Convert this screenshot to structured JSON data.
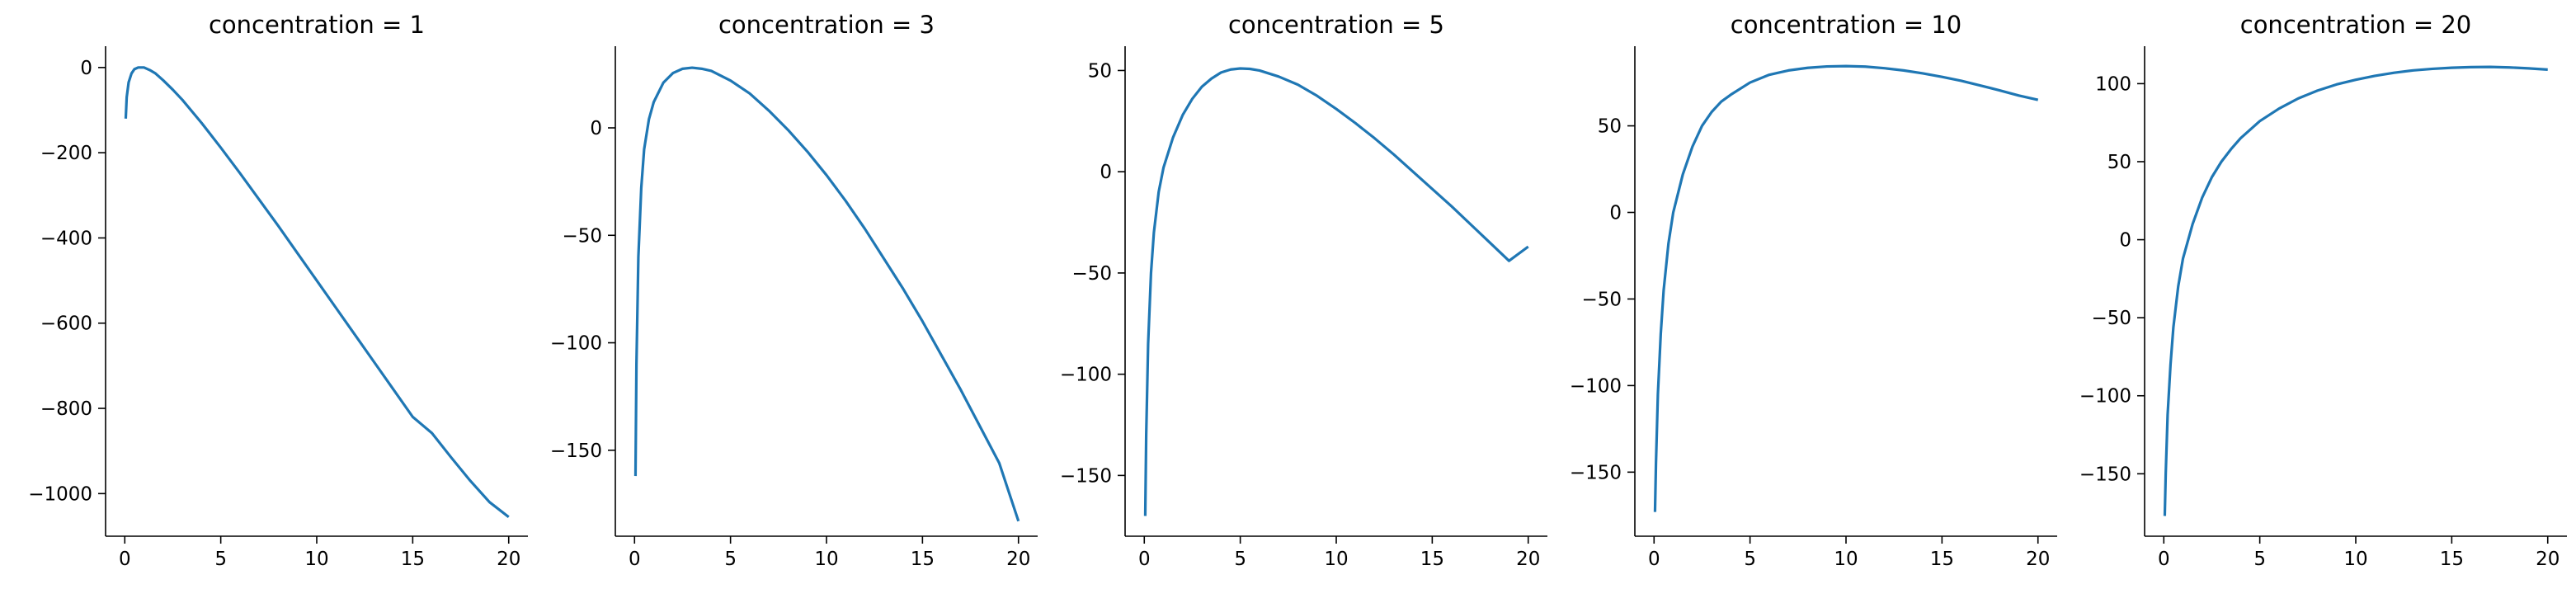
{
  "chart_data": [
    {
      "type": "line",
      "title": "concentration = 1",
      "xlabel": "",
      "ylabel": "",
      "xlim": [
        -1.0,
        21.0
      ],
      "ylim": [
        -1100,
        50
      ],
      "xticks": [
        0,
        5,
        10,
        15,
        20
      ],
      "xtick_labels": [
        "0",
        "5",
        "10",
        "15",
        "20"
      ],
      "yticks": [
        0,
        -200,
        -400,
        -600,
        -800,
        -1000
      ],
      "ytick_labels": [
        "0",
        "−200",
        "−400",
        "−600",
        "−800",
        "−1000"
      ],
      "grid": false,
      "color": "#1f77b4",
      "x": [
        0.05,
        0.1,
        0.2,
        0.35,
        0.5,
        0.7,
        1.0,
        1.3,
        1.6,
        2.0,
        2.5,
        3.0,
        4.0,
        5.0,
        6.0,
        7.0,
        8.0,
        9.0,
        10.0,
        11.0,
        12.0,
        13.0,
        14.0,
        15.0,
        16.0,
        17.0,
        18.0,
        19.0,
        20.0
      ],
      "y": [
        -120,
        -70,
        -35,
        -14,
        -4,
        0,
        0,
        -6,
        -14,
        -30,
        -52,
        -76,
        -130,
        -188,
        -248,
        -310,
        -372,
        -436,
        -500,
        -564,
        -628,
        -692,
        -756,
        -820,
        -858,
        -915,
        -970,
        -1020,
        -1055
      ]
    },
    {
      "type": "line",
      "title": "concentration = 3",
      "xlabel": "",
      "ylabel": "",
      "xlim": [
        -1.0,
        21.0
      ],
      "ylim": [
        -190,
        38
      ],
      "xticks": [
        0,
        5,
        10,
        15,
        20
      ],
      "xtick_labels": [
        "0",
        "5",
        "10",
        "15",
        "20"
      ],
      "yticks": [
        0,
        -50,
        -100,
        -150
      ],
      "ytick_labels": [
        "0",
        "−50",
        "−100",
        "−150"
      ],
      "grid": false,
      "color": "#1f77b4",
      "x": [
        0.05,
        0.1,
        0.2,
        0.35,
        0.5,
        0.75,
        1.0,
        1.5,
        2.0,
        2.5,
        3.0,
        3.5,
        4.0,
        5.0,
        6.0,
        7.0,
        8.0,
        9.0,
        10.0,
        11.0,
        12.0,
        13.0,
        14.0,
        15.0,
        16.0,
        17.0,
        18.0,
        19.0,
        20.0
      ],
      "y": [
        -162,
        -110,
        -60,
        -28,
        -10,
        4,
        12,
        21,
        25.5,
        27.5,
        28,
        27.5,
        26.5,
        22,
        16,
        8,
        -1,
        -11,
        -22,
        -34,
        -47,
        -61,
        -75,
        -90,
        -106,
        -122,
        -139,
        -156,
        -183
      ]
    },
    {
      "type": "line",
      "title": "concentration = 5",
      "xlabel": "",
      "ylabel": "",
      "xlim": [
        -1.0,
        21.0
      ],
      "ylim": [
        -180,
        62
      ],
      "xticks": [
        0,
        5,
        10,
        15,
        20
      ],
      "xtick_labels": [
        "0",
        "5",
        "10",
        "15",
        "20"
      ],
      "yticks": [
        50,
        0,
        -50,
        -100,
        -150
      ],
      "ytick_labels": [
        "50",
        "0",
        "−50",
        "−100",
        "−150"
      ],
      "grid": false,
      "color": "#1f77b4",
      "x": [
        0.05,
        0.1,
        0.2,
        0.35,
        0.5,
        0.75,
        1.0,
        1.5,
        2.0,
        2.5,
        3.0,
        3.5,
        4.0,
        4.5,
        5.0,
        5.5,
        6.0,
        7.0,
        8.0,
        9.0,
        10.0,
        11.0,
        12.0,
        13.0,
        14.0,
        15.0,
        16.0,
        17.0,
        18.0,
        19.0,
        20.0
      ],
      "y": [
        -170,
        -130,
        -85,
        -50,
        -30,
        -10,
        2,
        17,
        28,
        36,
        42,
        46,
        49,
        50.5,
        51,
        50.8,
        50,
        47,
        43,
        37.5,
        31,
        24,
        16.5,
        8.5,
        0,
        -8.5,
        -17,
        -26,
        -35,
        -44,
        -37
      ]
    },
    {
      "type": "line",
      "title": "concentration = 10",
      "xlabel": "",
      "ylabel": "",
      "xlim": [
        -1.0,
        21.0
      ],
      "ylim": [
        -187,
        96
      ],
      "xticks": [
        0,
        5,
        10,
        15,
        20
      ],
      "xtick_labels": [
        "0",
        "5",
        "10",
        "15",
        "20"
      ],
      "yticks": [
        50,
        0,
        -50,
        -100,
        -150
      ],
      "ytick_labels": [
        "50",
        "0",
        "−50",
        "−100",
        "−150"
      ],
      "grid": false,
      "color": "#1f77b4",
      "x": [
        0.05,
        0.1,
        0.2,
        0.35,
        0.5,
        0.75,
        1.0,
        1.5,
        2.0,
        2.5,
        3.0,
        3.5,
        4.0,
        5.0,
        6.0,
        7.0,
        8.0,
        9.0,
        10.0,
        11.0,
        12.0,
        13.0,
        14.0,
        15.0,
        16.0,
        17.0,
        18.0,
        19.0,
        20.0
      ],
      "y": [
        -173,
        -145,
        -105,
        -70,
        -45,
        -18,
        0,
        22,
        38,
        50,
        58,
        64,
        68,
        75,
        79.5,
        82,
        83.5,
        84.3,
        84.5,
        84.2,
        83.3,
        82,
        80.3,
        78.3,
        76,
        73.3,
        70.5,
        67.5,
        65
      ]
    },
    {
      "type": "line",
      "title": "concentration = 20",
      "xlabel": "",
      "ylabel": "",
      "xlim": [
        -1.0,
        21.0
      ],
      "ylim": [
        -190,
        124
      ],
      "xticks": [
        0,
        5,
        10,
        15,
        20
      ],
      "xtick_labels": [
        "0",
        "5",
        "10",
        "15",
        "20"
      ],
      "yticks": [
        100,
        50,
        0,
        -50,
        -100,
        -150
      ],
      "ytick_labels": [
        "100",
        "50",
        "0",
        "−50",
        "−100",
        "−150"
      ],
      "grid": false,
      "color": "#1f77b4",
      "x": [
        0.05,
        0.1,
        0.2,
        0.35,
        0.5,
        0.75,
        1.0,
        1.5,
        2.0,
        2.5,
        3.0,
        3.5,
        4.0,
        5.0,
        6.0,
        7.0,
        8.0,
        9.0,
        10.0,
        11.0,
        12.0,
        13.0,
        14.0,
        15.0,
        16.0,
        17.0,
        18.0,
        19.0,
        20.0
      ],
      "y": [
        -177,
        -150,
        -112,
        -80,
        -56,
        -30,
        -12,
        10,
        27,
        40,
        50,
        58,
        65,
        76,
        84,
        90.5,
        95.5,
        99.5,
        102.5,
        105,
        107,
        108.5,
        109.5,
        110.2,
        110.6,
        110.7,
        110.4,
        109.8,
        109
      ]
    }
  ]
}
